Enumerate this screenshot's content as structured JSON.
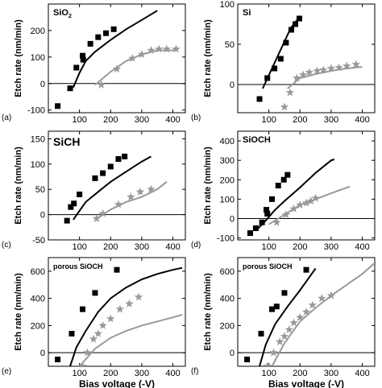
{
  "chart_data": [
    {
      "type": "scatter",
      "panel_letter": "(a)",
      "material": "SiO",
      "material_sub": "2",
      "xlabel": "",
      "ylabel": "Etch rate (nm/min)",
      "xlim": [
        0,
        440
      ],
      "ylim": [
        -110,
        300
      ],
      "xticks": [
        100,
        200,
        300,
        400
      ],
      "yticks": [
        -100,
        0,
        100,
        200
      ],
      "show_x_ticklabels": true,
      "series": [
        {
          "kind": "squares",
          "color": "#000000",
          "x": [
            30,
            70,
            90,
            110,
            112,
            135,
            160,
            185,
            210
          ],
          "y": [
            -85,
            -18,
            60,
            105,
            90,
            150,
            175,
            190,
            205
          ]
        },
        {
          "kind": "line",
          "color": "#000000",
          "x": [
            80,
            100,
            120,
            150,
            200,
            250,
            300,
            350
          ],
          "y": [
            -15,
            40,
            85,
            120,
            165,
            205,
            240,
            275
          ]
        },
        {
          "kind": "stars",
          "color": "#999999",
          "x": [
            170,
            220,
            270,
            300,
            330,
            355,
            380,
            410
          ],
          "y": [
            -5,
            55,
            95,
            110,
            125,
            130,
            130,
            130
          ]
        },
        {
          "kind": "line",
          "color": "#999999",
          "x": [
            150,
            200,
            250,
            300,
            350,
            410
          ],
          "y": [
            -5,
            45,
            85,
            110,
            125,
            125
          ]
        }
      ]
    },
    {
      "type": "scatter",
      "panel_letter": "(b)",
      "material": "Si",
      "material_sub": "",
      "xlabel": "",
      "ylabel": "Etch rate (nm/min)",
      "xlim": [
        0,
        440
      ],
      "ylim": [
        -35,
        100
      ],
      "xticks": [
        100,
        200,
        300,
        400
      ],
      "yticks": [
        0,
        50,
        100
      ],
      "show_x_ticklabels": true,
      "series": [
        {
          "kind": "squares",
          "color": "#000000",
          "x": [
            70,
            95,
            118,
            138,
            155,
            172,
            185,
            198
          ],
          "y": [
            -18,
            8,
            20,
            32,
            52,
            68,
            75,
            82
          ]
        },
        {
          "kind": "line",
          "color": "#000000",
          "x": [
            80,
            110,
            140,
            170,
            190
          ],
          "y": [
            -5,
            20,
            45,
            70,
            80
          ]
        },
        {
          "kind": "stars",
          "color": "#999999",
          "x": [
            150,
            168,
            190,
            210,
            230,
            255,
            275,
            300,
            325,
            350,
            380
          ],
          "y": [
            -28,
            -10,
            8,
            12,
            15,
            17,
            18,
            20,
            21,
            23,
            25
          ]
        },
        {
          "kind": "line",
          "color": "#999999",
          "x": [
            160,
            200,
            250,
            300,
            350,
            400
          ],
          "y": [
            -5,
            8,
            13,
            17,
            20,
            22
          ]
        }
      ]
    },
    {
      "type": "scatter",
      "panel_letter": "(c)",
      "material": "SiCH",
      "material_sub": "",
      "xlabel": "",
      "ylabel": "Etch rate (nm/min)",
      "xlim": [
        0,
        440
      ],
      "ylim": [
        -50,
        165
      ],
      "xticks": [
        100,
        200,
        300,
        400
      ],
      "yticks": [
        -50,
        0,
        50,
        100,
        150
      ],
      "show_x_ticklabels": true,
      "series": [
        {
          "kind": "squares",
          "color": "#000000",
          "x": [
            60,
            72,
            82,
            100,
            150,
            175,
            200,
            225,
            245
          ],
          "y": [
            -12,
            15,
            22,
            40,
            72,
            82,
            95,
            110,
            115
          ]
        },
        {
          "kind": "line",
          "color": "#000000",
          "x": [
            80,
            120,
            160,
            200,
            250,
            300,
            330
          ],
          "y": [
            -10,
            25,
            45,
            65,
            85,
            105,
            115
          ]
        },
        {
          "kind": "stars",
          "color": "#999999",
          "x": [
            155,
            175,
            225,
            265,
            295,
            330
          ],
          "y": [
            -8,
            2,
            20,
            35,
            45,
            50
          ]
        },
        {
          "kind": "line",
          "color": "#999999",
          "x": [
            150,
            200,
            250,
            300,
            350,
            380
          ],
          "y": [
            -10,
            10,
            25,
            35,
            50,
            65
          ]
        }
      ]
    },
    {
      "type": "scatter",
      "panel_letter": "(d)",
      "material": "SiOCH",
      "material_sub": "",
      "xlabel": "",
      "ylabel": "Etch rate (nm/min)",
      "xlim": [
        0,
        440
      ],
      "ylim": [
        -110,
        450
      ],
      "xticks": [
        100,
        200,
        300,
        400
      ],
      "yticks": [
        -100,
        0,
        100,
        200,
        300,
        400
      ],
      "show_x_ticklabels": true,
      "series": [
        {
          "kind": "squares",
          "color": "#000000",
          "x": [
            40,
            58,
            78,
            92,
            95,
            110,
            130,
            148,
            160
          ],
          "y": [
            -75,
            -50,
            -20,
            45,
            25,
            100,
            170,
            200,
            225
          ]
        },
        {
          "kind": "line",
          "color": "#000000",
          "x": [
            60,
            90,
            120,
            150,
            200,
            250,
            300,
            310
          ],
          "y": [
            -60,
            -10,
            45,
            90,
            160,
            235,
            300,
            305
          ]
        },
        {
          "kind": "stars",
          "color": "#999999",
          "x": [
            125,
            155,
            180,
            200,
            220,
            235,
            250
          ],
          "y": [
            -20,
            20,
            50,
            70,
            80,
            90,
            105
          ]
        },
        {
          "kind": "line",
          "color": "#999999",
          "x": [
            100,
            150,
            200,
            250,
            300,
            360
          ],
          "y": [
            -30,
            20,
            70,
            100,
            130,
            165
          ]
        }
      ]
    },
    {
      "type": "scatter",
      "panel_letter": "(e)",
      "material": "porous SiOCH",
      "material_sub": "",
      "xlabel": "Bias voltage (-V)",
      "ylabel": "Etch rate (nm/min)",
      "xlim": [
        0,
        440
      ],
      "ylim": [
        -100,
        700
      ],
      "xticks": [
        100,
        200,
        300,
        400
      ],
      "yticks": [
        0,
        200,
        400,
        600
      ],
      "show_x_ticklabels": true,
      "series": [
        {
          "kind": "squares",
          "color": "#000000",
          "x": [
            30,
            75,
            110,
            150,
            220
          ],
          "y": [
            -50,
            140,
            320,
            440,
            610
          ]
        },
        {
          "kind": "line",
          "color": "#000000",
          "x": [
            70,
            90,
            120,
            160,
            200,
            250,
            300,
            350,
            400,
            430
          ],
          "y": [
            -100,
            40,
            160,
            300,
            400,
            480,
            540,
            580,
            610,
            625
          ]
        },
        {
          "kind": "stars",
          "color": "#999999",
          "x": [
            110,
            125,
            145,
            160,
            175,
            200,
            230,
            260,
            290
          ],
          "y": [
            -100,
            0,
            100,
            140,
            200,
            250,
            320,
            360,
            410
          ]
        },
        {
          "kind": "line",
          "color": "#999999",
          "x": [
            100,
            150,
            200,
            250,
            300,
            350,
            400,
            430
          ],
          "y": [
            -100,
            30,
            110,
            160,
            200,
            230,
            260,
            280
          ]
        }
      ]
    },
    {
      "type": "scatter",
      "panel_letter": "(f)",
      "material": "porous SiOCH",
      "material_sub": "",
      "xlabel": "Bias voltage (-V)",
      "ylabel": "Etch rate (nm/min)",
      "xlim": [
        0,
        440
      ],
      "ylim": [
        -100,
        700
      ],
      "xticks": [
        100,
        200,
        300,
        400
      ],
      "yticks": [
        0,
        200,
        400,
        600
      ],
      "show_x_ticklabels": true,
      "series": [
        {
          "kind": "squares",
          "color": "#000000",
          "x": [
            30,
            75,
            110,
            125,
            150,
            220
          ],
          "y": [
            -50,
            140,
            320,
            340,
            440,
            610
          ]
        },
        {
          "kind": "line",
          "color": "#000000",
          "x": [
            70,
            90,
            120,
            160,
            200,
            250
          ],
          "y": [
            -100,
            60,
            210,
            340,
            460,
            620
          ]
        },
        {
          "kind": "stars",
          "color": "#999999",
          "x": [
            95,
            115,
            135,
            150,
            165,
            180,
            200,
            220,
            240,
            270,
            300
          ],
          "y": [
            -100,
            0,
            80,
            120,
            170,
            220,
            260,
            300,
            350,
            400,
            420
          ]
        },
        {
          "kind": "line",
          "color": "#999999",
          "x": [
            110,
            150,
            200,
            250,
            300,
            350,
            400,
            440
          ],
          "y": [
            -100,
            70,
            230,
            330,
            420,
            500,
            580,
            660
          ]
        }
      ]
    }
  ]
}
